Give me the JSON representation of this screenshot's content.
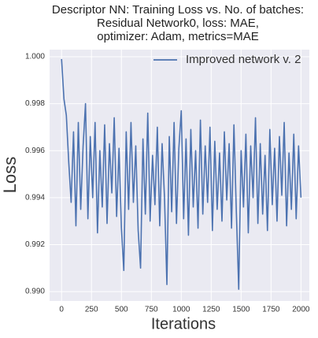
{
  "chart_data": {
    "type": "line",
    "title": "Descriptor NN: Training Loss vs. No. of batches:\nResidual Network0, loss: MAE,\noptimizer: Adam, metrics=MAE",
    "xlabel": "Iterations",
    "ylabel": "Loss",
    "x": [
      0,
      20,
      40,
      60,
      80,
      100,
      120,
      140,
      160,
      180,
      200,
      220,
      240,
      260,
      280,
      300,
      320,
      340,
      360,
      380,
      400,
      420,
      440,
      460,
      480,
      500,
      520,
      540,
      560,
      580,
      600,
      620,
      640,
      660,
      680,
      700,
      720,
      740,
      760,
      780,
      800,
      820,
      840,
      860,
      880,
      900,
      920,
      940,
      960,
      980,
      1000,
      1020,
      1040,
      1060,
      1080,
      1100,
      1120,
      1140,
      1160,
      1180,
      1200,
      1220,
      1240,
      1260,
      1280,
      1300,
      1320,
      1340,
      1360,
      1380,
      1400,
      1420,
      1440,
      1460,
      1480,
      1500,
      1520,
      1540,
      1560,
      1580,
      1600,
      1620,
      1640,
      1660,
      1680,
      1700,
      1720,
      1740,
      1760,
      1780,
      1800,
      1820,
      1840,
      1860,
      1880,
      1900,
      1920,
      1940,
      1960,
      1980,
      2000
    ],
    "series": [
      {
        "name": "Improved network v. 2",
        "color": "#4c72b0",
        "values": [
          0.9999,
          0.9982,
          0.9975,
          0.9955,
          0.9938,
          0.9968,
          0.9928,
          0.9972,
          0.9935,
          0.9962,
          0.998,
          0.9931,
          0.9966,
          0.994,
          0.9972,
          0.9925,
          0.996,
          0.9936,
          0.9971,
          0.9929,
          0.9963,
          0.9942,
          0.9974,
          0.9932,
          0.9961,
          0.9927,
          0.9909,
          0.9968,
          0.9935,
          0.9972,
          0.9938,
          0.9962,
          0.9926,
          0.991,
          0.9965,
          0.9933,
          0.9976,
          0.993,
          0.9958,
          0.9937,
          0.997,
          0.9928,
          0.9963,
          0.994,
          0.9903,
          0.9966,
          0.9934,
          0.9972,
          0.9929,
          0.9961,
          0.9977,
          0.9931,
          0.9965,
          0.9924,
          0.9969,
          0.9936,
          0.996,
          0.9927,
          0.9973,
          0.9933,
          0.9962,
          0.9938,
          0.997,
          0.9926,
          0.9964,
          0.9935,
          0.9959,
          0.993,
          0.9968,
          0.9939,
          0.9963,
          0.9927,
          0.9971,
          0.9934,
          0.9901,
          0.996,
          0.9936,
          0.9967,
          0.9925,
          0.9962,
          0.994,
          0.9974,
          0.9929,
          0.9963,
          0.9933,
          0.9958,
          0.9926,
          0.9969,
          0.9937,
          0.9961,
          0.993,
          0.9966,
          0.9941,
          0.9972,
          0.9928,
          0.9959,
          0.9935,
          0.9967,
          0.9931,
          0.9962,
          0.994
        ]
      }
    ],
    "xlim": [
      -100,
      2070
    ],
    "ylim": [
      0.9896,
      1.0003
    ],
    "xticks": [
      0,
      250,
      500,
      750,
      1000,
      1250,
      1500,
      1750,
      2000
    ],
    "yticks": [
      {
        "value": 0.99,
        "label": "0.990"
      },
      0.992,
      0.994,
      0.996,
      0.998,
      {
        "value": 1,
        "label": "1.000"
      }
    ],
    "grid": true,
    "legend": "upper right"
  }
}
